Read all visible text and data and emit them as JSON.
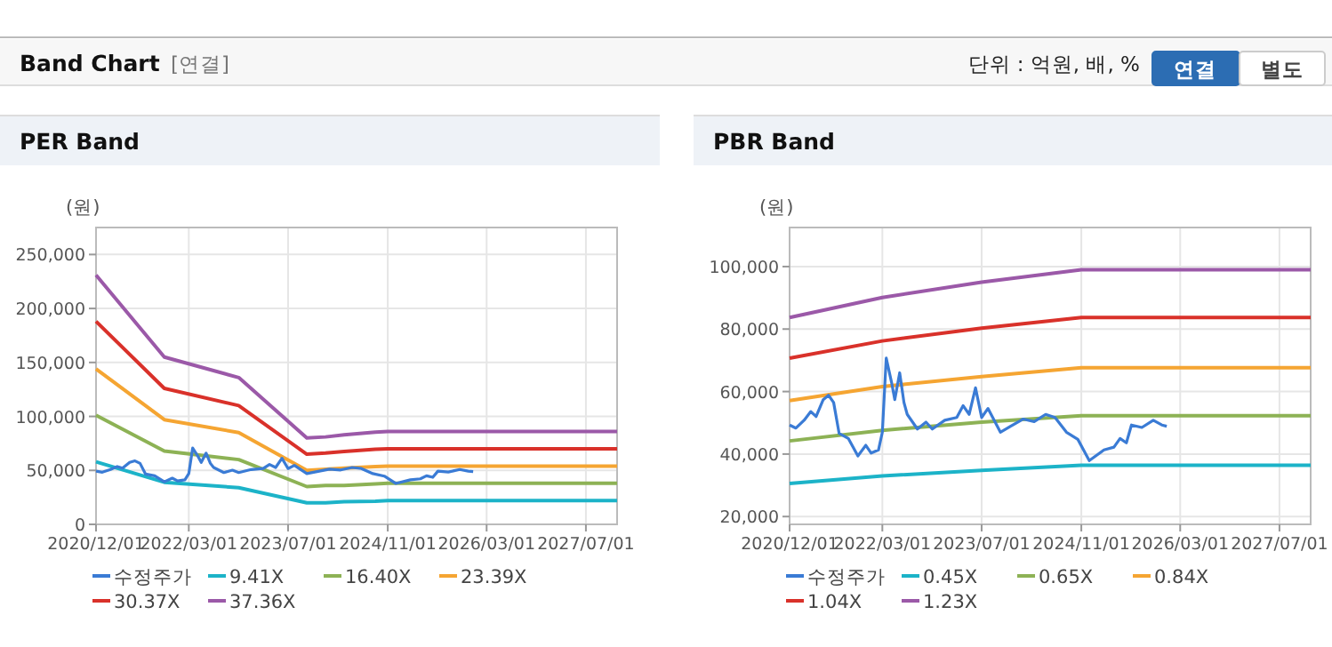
{
  "chart_data": [
    {
      "type": "other",
      "title": "Band Chart",
      "annotations": [
        "[연결]",
        "단위 : 억원, 배, %",
        "연결",
        "별도"
      ]
    },
    {
      "type": "line",
      "title": "PER Band",
      "ylabel": "(원)",
      "grid": true,
      "legend": "bottom",
      "xlim": [
        "2020-12-01",
        "2027-12-01"
      ],
      "xticks": [
        {
          "value": "2020-12-01",
          "label": "2020/12/01"
        },
        {
          "value": "2022-03-01",
          "label": "2022/03/01"
        },
        {
          "value": "2023-07-01",
          "label": "2023/07/01"
        },
        {
          "value": "2024-11-01",
          "label": "2024/11/01"
        },
        {
          "value": "2026-03-01",
          "label": "2026/03/01"
        },
        {
          "value": "2027-07-01",
          "label": "2027/07/01"
        }
      ],
      "ylim": [
        0,
        275000
      ],
      "yticks": [
        {
          "value": 0,
          "label": "0"
        },
        {
          "value": 50000,
          "label": "50,000"
        },
        {
          "value": 100000,
          "label": "100,000"
        },
        {
          "value": 150000,
          "label": "150,000"
        },
        {
          "value": 200000,
          "label": "200,000"
        },
        {
          "value": 250000,
          "label": "250,000"
        }
      ],
      "series": [
        {
          "name": "수정주가",
          "color": "#3a7bd5",
          "x": [
            "2020-12-01",
            "2021-01-01",
            "2021-02-10",
            "2021-03-15",
            "2021-04-10",
            "2021-05-15",
            "2021-06-10",
            "2021-07-05",
            "2021-08-01",
            "2021-09-15",
            "2021-11-01",
            "2021-12-10",
            "2022-01-05",
            "2022-02-10",
            "2022-03-01",
            "2022-03-20",
            "2022-04-15",
            "2022-05-01",
            "2022-05-25",
            "2022-06-15",
            "2022-07-01",
            "2022-08-20",
            "2022-10-01",
            "2022-11-01",
            "2023-01-01",
            "2023-03-01",
            "2023-04-01",
            "2023-05-01",
            "2023-06-01",
            "2023-07-01",
            "2023-08-01",
            "2023-10-01",
            "2023-11-20",
            "2024-01-20",
            "2024-03-15",
            "2024-05-10",
            "2024-06-25",
            "2024-08-20",
            "2024-10-15",
            "2024-12-10",
            "2025-02-20",
            "2025-04-10",
            "2025-05-10",
            "2025-06-10",
            "2025-07-05",
            "2025-08-25",
            "2025-10-20",
            "2025-12-01",
            "2025-12-25"
          ],
          "values": [
            49300,
            48300,
            50800,
            53600,
            52000,
            57400,
            58800,
            56500,
            46600,
            45000,
            39400,
            42800,
            40300,
            41300,
            47000,
            70700,
            63000,
            57400,
            66000,
            56500,
            52700,
            48000,
            50200,
            48000,
            50800,
            51700,
            55500,
            52700,
            61200,
            51700,
            54600,
            47000,
            48900,
            51200,
            50400,
            52700,
            51700,
            47000,
            44700,
            37900,
            41300,
            42200,
            45000,
            43600,
            49300,
            48500,
            50800,
            49300,
            48900
          ]
        },
        {
          "name": "9.41X",
          "color": "#1cb3c8",
          "x": [
            "2020-12-01",
            "2021-11-01",
            "2022-11-01",
            "2023-10-01",
            "2024-01-01",
            "2024-04-01",
            "2024-09-01",
            "2024-11-01",
            "2027-12-01"
          ],
          "values": [
            58000,
            39000,
            34000,
            20000,
            20000,
            21000,
            21500,
            22000,
            22000
          ]
        },
        {
          "name": "16.40X",
          "color": "#8db255",
          "x": [
            "2020-12-01",
            "2021-11-01",
            "2022-11-01",
            "2023-10-01",
            "2024-01-01",
            "2024-04-01",
            "2024-09-01",
            "2024-11-01",
            "2027-12-01"
          ],
          "values": [
            101000,
            68000,
            60000,
            35000,
            36000,
            36000,
            37500,
            38000,
            38000
          ]
        },
        {
          "name": "23.39X",
          "color": "#f5a532",
          "x": [
            "2020-12-01",
            "2021-11-01",
            "2022-11-01",
            "2023-10-01",
            "2024-01-01",
            "2024-04-01",
            "2024-09-01",
            "2024-11-01",
            "2027-12-01"
          ],
          "values": [
            144000,
            97000,
            85000,
            50000,
            51000,
            52000,
            53500,
            54000,
            54000
          ]
        },
        {
          "name": "30.37X",
          "color": "#d9312a",
          "x": [
            "2020-12-01",
            "2021-11-01",
            "2022-11-01",
            "2023-10-01",
            "2024-01-01",
            "2024-04-01",
            "2024-09-01",
            "2024-11-01",
            "2027-12-01"
          ],
          "values": [
            188000,
            126000,
            110000,
            65000,
            66000,
            67500,
            69500,
            70000,
            70000
          ]
        },
        {
          "name": "37.36X",
          "color": "#9b59a8",
          "x": [
            "2020-12-01",
            "2021-11-01",
            "2022-11-01",
            "2023-10-01",
            "2024-01-01",
            "2024-04-01",
            "2024-09-01",
            "2024-11-01",
            "2027-12-01"
          ],
          "values": [
            231000,
            155000,
            136000,
            80000,
            81000,
            83000,
            85500,
            86000,
            86000
          ]
        }
      ]
    },
    {
      "type": "line",
      "title": "PBR Band",
      "ylabel": "(원)",
      "grid": true,
      "legend": "bottom",
      "xlim": [
        "2020-12-01",
        "2027-12-01"
      ],
      "xticks": [
        {
          "value": "2020-12-01",
          "label": "2020/12/01"
        },
        {
          "value": "2022-03-01",
          "label": "2022/03/01"
        },
        {
          "value": "2023-07-01",
          "label": "2023/07/01"
        },
        {
          "value": "2024-11-01",
          "label": "2024/11/01"
        },
        {
          "value": "2026-03-01",
          "label": "2026/03/01"
        },
        {
          "value": "2027-07-01",
          "label": "2027/07/01"
        }
      ],
      "ylim": [
        17500,
        112500
      ],
      "yticks": [
        {
          "value": 20000,
          "label": "20,000"
        },
        {
          "value": 40000,
          "label": "40,000"
        },
        {
          "value": 60000,
          "label": "60,000"
        },
        {
          "value": 80000,
          "label": "80,000"
        },
        {
          "value": 100000,
          "label": "100,000"
        }
      ],
      "series": [
        {
          "name": "수정주가",
          "color": "#3a7bd5",
          "x": [
            "2020-12-01",
            "2021-01-01",
            "2021-02-10",
            "2021-03-15",
            "2021-04-10",
            "2021-05-15",
            "2021-06-10",
            "2021-07-05",
            "2021-08-01",
            "2021-09-15",
            "2021-11-01",
            "2021-12-10",
            "2022-01-05",
            "2022-02-10",
            "2022-03-01",
            "2022-03-20",
            "2022-04-15",
            "2022-05-01",
            "2022-05-25",
            "2022-06-15",
            "2022-07-01",
            "2022-08-20",
            "2022-10-01",
            "2022-11-01",
            "2023-01-01",
            "2023-03-01",
            "2023-04-01",
            "2023-05-01",
            "2023-06-01",
            "2023-07-01",
            "2023-08-01",
            "2023-10-01",
            "2023-11-20",
            "2024-01-20",
            "2024-03-15",
            "2024-05-10",
            "2024-06-25",
            "2024-08-20",
            "2024-10-15",
            "2024-12-10",
            "2025-02-20",
            "2025-04-10",
            "2025-05-10",
            "2025-06-10",
            "2025-07-05",
            "2025-08-25",
            "2025-10-20",
            "2025-12-01",
            "2025-12-25"
          ],
          "values": [
            49300,
            48300,
            50800,
            53600,
            52000,
            57400,
            58800,
            56500,
            46600,
            45000,
            39400,
            42800,
            40300,
            41300,
            47000,
            70700,
            63000,
            57400,
            66000,
            56500,
            52700,
            48000,
            50200,
            48000,
            50800,
            51700,
            55500,
            52700,
            61200,
            51700,
            54600,
            47000,
            48900,
            51200,
            50400,
            52700,
            51700,
            47000,
            44700,
            37900,
            41300,
            42200,
            45000,
            43600,
            49300,
            48500,
            50800,
            49300,
            48900
          ]
        },
        {
          "name": "0.45X",
          "color": "#1cb3c8",
          "x": [
            "2020-12-01",
            "2022-03-01",
            "2023-07-01",
            "2024-11-01",
            "2027-12-01"
          ],
          "values": [
            30600,
            33000,
            34800,
            36400,
            36400
          ]
        },
        {
          "name": "0.65X",
          "color": "#8db255",
          "x": [
            "2020-12-01",
            "2022-03-01",
            "2023-07-01",
            "2024-11-01",
            "2027-12-01"
          ],
          "values": [
            44200,
            47600,
            50200,
            52300,
            52300
          ]
        },
        {
          "name": "0.84X",
          "color": "#f5a532",
          "x": [
            "2020-12-01",
            "2022-03-01",
            "2023-07-01",
            "2024-11-01",
            "2027-12-01"
          ],
          "values": [
            57100,
            61600,
            64800,
            67600,
            67600
          ]
        },
        {
          "name": "1.04X",
          "color": "#d9312a",
          "x": [
            "2020-12-01",
            "2022-03-01",
            "2023-07-01",
            "2024-11-01",
            "2027-12-01"
          ],
          "values": [
            70700,
            76200,
            80300,
            83700,
            83700
          ]
        },
        {
          "name": "1.23X",
          "color": "#9b59a8",
          "x": [
            "2020-12-01",
            "2022-03-01",
            "2023-07-01",
            "2024-11-01",
            "2027-12-01"
          ],
          "values": [
            83700,
            90100,
            95000,
            99000,
            99000
          ]
        }
      ]
    }
  ]
}
